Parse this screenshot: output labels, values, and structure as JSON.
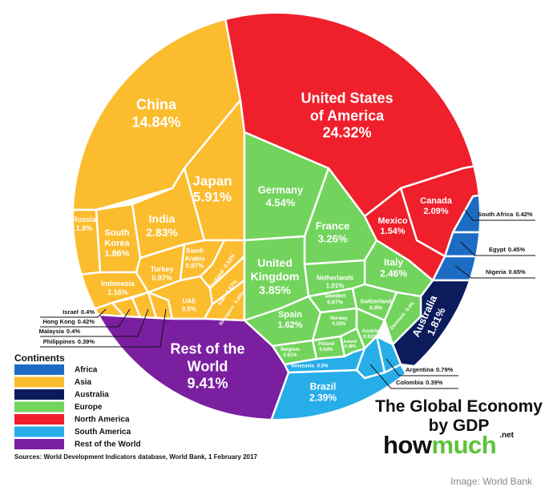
{
  "chart_data": {
    "type": "treemap",
    "title": "The Global Economy by GDP",
    "brand": {
      "first": "how",
      "second": "much",
      "suffix": ".net"
    },
    "legend_title": "Continents",
    "source": "Sources: World Development Indicators database, World Bank, 1 February 2017",
    "credit": "Image: World Bank",
    "series": [
      {
        "name": "Africa",
        "color": "#1c6cc4",
        "categories": [
          "South Africa",
          "Egypt",
          "Nigeria"
        ],
        "values": [
          0.42,
          0.45,
          0.65
        ],
        "value_labels": [
          "0.42%",
          "0.45%",
          "0.65%"
        ]
      },
      {
        "name": "Asia",
        "color": "#fbbc2e",
        "categories": [
          "China",
          "Japan",
          "India",
          "South Korea",
          "Russia",
          "Indonesia",
          "Turkey",
          "Saudi Arabia",
          "UAE",
          "Thailand",
          "Iran",
          "Singapore",
          "Israel",
          "Hong Kong",
          "Malaysia",
          "Philippines"
        ],
        "values": [
          14.84,
          5.91,
          2.83,
          1.86,
          1.8,
          1.16,
          0.97,
          0.87,
          0.5,
          0.53,
          0.57,
          0.39,
          0.4,
          0.42,
          0.4,
          0.39
        ],
        "value_labels": [
          "14.84%",
          "5.91%",
          "2.83%",
          "1.86%",
          "1.8%",
          "1.16%",
          "0.97%",
          "0.87%",
          "0.5%",
          "0.53%",
          "0.57%",
          "0.39%",
          "0.4%",
          "0.42%",
          "0.4%",
          "0.39%"
        ]
      },
      {
        "name": "Australia",
        "color": "#0b1b5c",
        "categories": [
          "Australia"
        ],
        "values": [
          1.81
        ],
        "value_labels": [
          "1.81%"
        ]
      },
      {
        "name": "Europe",
        "color": "#72d45c",
        "categories": [
          "Germany",
          "France",
          "United Kingdom",
          "Italy",
          "Spain",
          "Netherlands",
          "Sweden",
          "Switzerland",
          "Denmark",
          "Norway",
          "Austria",
          "Poland",
          "Ireland",
          "Belgium"
        ],
        "values": [
          4.54,
          3.26,
          3.85,
          2.46,
          1.62,
          1.01,
          0.67,
          0.9,
          0.4,
          0.52,
          0.51,
          0.64,
          0.38,
          0.61
        ],
        "value_labels": [
          "4.54%",
          "3.26%",
          "3.85%",
          "2.46%",
          "1.62%",
          "1.01%",
          "0.67%",
          "0.9%",
          "0.4%",
          "0.52%",
          "0.51%",
          "0.64%",
          "0.38%",
          "0.61%"
        ]
      },
      {
        "name": "North America",
        "color": "#ef1f2c",
        "categories": [
          "United States of America",
          "Canada",
          "Mexico"
        ],
        "values": [
          24.32,
          2.09,
          1.54
        ],
        "value_labels": [
          "24.32%",
          "2.09%",
          "1.54%"
        ]
      },
      {
        "name": "South America",
        "color": "#27aee9",
        "categories": [
          "Brazil",
          "Venezuela",
          "Argentina",
          "Colombia"
        ],
        "values": [
          2.39,
          0.5,
          0.79,
          0.39
        ],
        "value_labels": [
          "2.39%",
          "0.5%",
          "0.79%",
          "0.39%"
        ]
      },
      {
        "name": "Rest of the World",
        "color": "#7a1fa0",
        "categories": [
          "Rest of the World"
        ],
        "values": [
          9.41
        ],
        "value_labels": [
          "9.41%"
        ]
      }
    ]
  }
}
